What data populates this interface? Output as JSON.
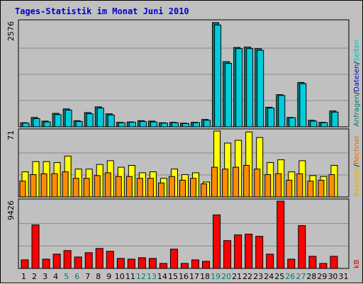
{
  "window": {
    "title": "Tages-Statistik im Monat Juni 2010"
  },
  "chart_data": {
    "type": "bar",
    "title": "Tages-Statistik im Monat Juni 2010",
    "categories": [
      1,
      2,
      3,
      4,
      5,
      6,
      7,
      8,
      9,
      10,
      11,
      12,
      13,
      14,
      15,
      16,
      17,
      18,
      19,
      20,
      21,
      22,
      23,
      24,
      25,
      26,
      27,
      28,
      29,
      30,
      31
    ],
    "weekend_days": [
      5,
      6,
      12,
      13,
      19,
      20,
      26,
      27
    ],
    "colors": {
      "anfragen": "#008060",
      "dateien": "#0000cc",
      "seiten": "#00c0c0",
      "besuche": "#e0b000",
      "rechner": "#e07000",
      "kb": "#cc0000",
      "weekday_label": "#000000",
      "weekend_label": "#008060"
    },
    "panels": [
      {
        "id": "hits",
        "ymax_label": "2576",
        "ymax": 2576,
        "legend": [
          {
            "label": "Anfragen",
            "color": "#008060"
          },
          {
            "label": "/",
            "color": "#000000"
          },
          {
            "label": "Dateien",
            "color": "#0000cc"
          },
          {
            "label": "/",
            "color": "#000000"
          },
          {
            "label": "Seiten",
            "color": "#00c0c0"
          }
        ],
        "series": [
          {
            "name": "Anfragen",
            "color": "#00ccdd",
            "values": [
              100,
              230,
              140,
              330,
              440,
              150,
              350,
              490,
              320,
              110,
              120,
              150,
              140,
              100,
              110,
              90,
              110,
              180,
              2560,
              1600,
              1950,
              1960,
              1920,
              480,
              790,
              230,
              1090,
              160,
              110,
              390,
              0
            ]
          },
          {
            "name": "Dateien",
            "color": "#00ccdd",
            "values": [
              90,
              200,
              120,
              300,
              410,
              130,
              320,
              460,
              290,
              100,
              110,
              130,
              120,
              90,
              100,
              80,
              100,
              160,
              2500,
              1560,
              1920,
              1920,
              1880,
              460,
              770,
              220,
              1060,
              140,
              100,
              360,
              0
            ]
          }
        ]
      },
      {
        "id": "visits",
        "ymax_label": "71",
        "ymax": 71,
        "legend": [
          {
            "label": "Besuche",
            "color": "#e0b000"
          },
          {
            "label": "/",
            "color": "#000000"
          },
          {
            "label": "Rechner",
            "color": "#e07000"
          }
        ],
        "series": [
          {
            "name": "Besuche",
            "color": "#ffff00",
            "values": [
              27,
              38,
              38,
              37,
              44,
              30,
              30,
              35,
              39,
              32,
              34,
              26,
              27,
              20,
              30,
              24,
              26,
              16,
              71,
              58,
              61,
              70,
              64,
              37,
              40,
              27,
              39,
              23,
              22,
              34,
              0
            ]
          },
          {
            "name": "Rechner",
            "color": "#ff8c00",
            "values": [
              17,
              24,
              25,
              25,
              27,
              20,
              20,
              23,
              26,
              22,
              22,
              20,
              20,
              15,
              22,
              18,
              20,
              14,
              32,
              30,
              32,
              34,
              30,
              24,
              25,
              18,
              25,
              17,
              18,
              24,
              0
            ]
          }
        ]
      },
      {
        "id": "kb",
        "ymax_label": "9426",
        "ymax": 9426,
        "legend": [
          {
            "label": "kB",
            "color": "#cc0000"
          }
        ],
        "series": [
          {
            "name": "kB",
            "color": "#ff0000",
            "values": [
              1200,
              6100,
              1300,
              2000,
              2500,
              1600,
              2200,
              2800,
              2400,
              1400,
              1300,
              1500,
              1400,
              700,
              2700,
              700,
              1200,
              1000,
              7500,
              3900,
              4700,
              4800,
              4500,
              2000,
              9426,
              1300,
              6000,
              1700,
              700,
              1700,
              0
            ]
          }
        ]
      }
    ]
  }
}
